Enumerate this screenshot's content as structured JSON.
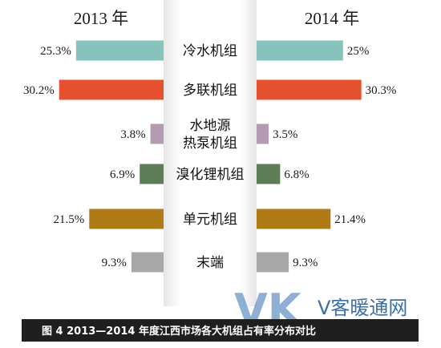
{
  "chart_data": {
    "type": "bar",
    "left_title": "2013 年",
    "right_title": "2014 年",
    "categories": [
      [
        "冷水机组"
      ],
      [
        "多联机组"
      ],
      [
        "水地源",
        "热泵机组"
      ],
      [
        "溴化锂机组"
      ],
      [
        "单元机组"
      ],
      [
        "末端"
      ]
    ],
    "series": [
      {
        "values": [
          25.3,
          30.2,
          3.8,
          6.9,
          21.5,
          9.3
        ]
      },
      {
        "values": [
          25.0,
          30.3,
          3.5,
          6.8,
          21.4,
          9.3
        ]
      }
    ],
    "value_labels_left": [
      "25.3%",
      "30.2%",
      "3.8%",
      "6.9%",
      "21.5%",
      "9.3%"
    ],
    "value_labels_right": [
      "25%",
      "30.3%",
      "3.5%",
      "6.8%",
      "21.4%",
      "9.3%"
    ],
    "colors": [
      "#86c3bd",
      "#e5502f",
      "#b49bb2",
      "#5c7d55",
      "#b07a17",
      "#a8a8a8"
    ],
    "caption": "图 4    2013—2014 年度江西市场各大机组占有率分布对比"
  },
  "watermark": {
    "logo": "VK",
    "text": "V客暖通网"
  }
}
